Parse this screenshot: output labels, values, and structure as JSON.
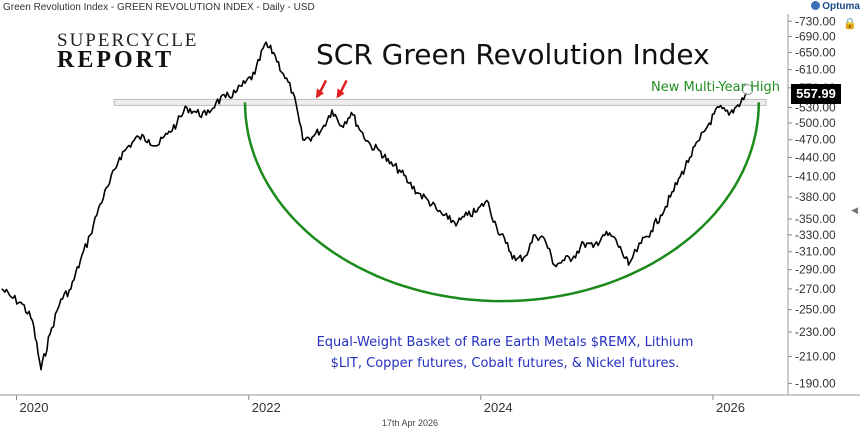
{
  "header": {
    "chart_info": "Green Revolution Index - GREEN REVOLUTION INDEX - Daily - USD",
    "brand": "Optuma",
    "date": "17th Apr 2026",
    "lock_icon": "lock-icon",
    "scroll_icon": "chevron-left-icon"
  },
  "logo": {
    "line1": "SUPERCYCLE",
    "line2": "REPORT"
  },
  "chart_data": {
    "type": "line",
    "title": "SCR Green Revolution Index",
    "series": [
      {
        "x": [
          "2019-11-15",
          "2019-12-15",
          "2020-01-20",
          "2020-02-20",
          "2020-03-18",
          "2020-04-15",
          "2020-05-20",
          "2020-06-20",
          "2020-07-20",
          "2020-08-20",
          "2020-09-20",
          "2020-10-20",
          "2020-11-20",
          "2020-12-20",
          "2021-01-20",
          "2021-02-20",
          "2021-03-20",
          "2021-04-20",
          "2021-05-20",
          "2021-06-20",
          "2021-07-20",
          "2021-08-20",
          "2021-09-20",
          "2021-10-20",
          "2021-11-20",
          "2021-12-20",
          "2022-01-20",
          "2022-02-20",
          "2022-03-20",
          "2022-04-20",
          "2022-05-20",
          "2022-06-20",
          "2022-07-20",
          "2022-08-20",
          "2022-09-20",
          "2022-10-20",
          "2022-11-20",
          "2022-12-20",
          "2023-01-20",
          "2023-02-20",
          "2023-03-20",
          "2023-04-20",
          "2023-05-20",
          "2023-06-20",
          "2023-07-20",
          "2023-08-20",
          "2023-09-20",
          "2023-10-20",
          "2023-11-20",
          "2023-12-20",
          "2024-01-20",
          "2024-02-20",
          "2024-03-20",
          "2024-04-20",
          "2024-05-20",
          "2024-06-20",
          "2024-07-20",
          "2024-08-20",
          "2024-09-20",
          "2024-10-20",
          "2024-11-20",
          "2024-12-20",
          "2025-01-20",
          "2025-02-20",
          "2025-03-20",
          "2025-04-10",
          "2025-05-20",
          "2025-06-20",
          "2025-07-20",
          "2025-08-20",
          "2025-09-20",
          "2025-10-20",
          "2025-11-20",
          "2025-12-20",
          "2026-01-20",
          "2026-02-20",
          "2026-03-20",
          "2026-04-17"
        ],
        "values": [
          270,
          262,
          255,
          240,
          200,
          228,
          260,
          270,
          300,
          330,
          370,
          400,
          440,
          460,
          475,
          470,
          460,
          480,
          500,
          530,
          520,
          515,
          540,
          550,
          560,
          580,
          600,
          670,
          650,
          600,
          560,
          470,
          475,
          490,
          525,
          495,
          520,
          485,
          460,
          450,
          430,
          420,
          400,
          385,
          375,
          360,
          350,
          345,
          355,
          360,
          375,
          340,
          320,
          300,
          305,
          330,
          325,
          295,
          300,
          305,
          320,
          315,
          330,
          328,
          310,
          295,
          320,
          335,
          355,
          380,
          410,
          440,
          470,
          500,
          530,
          515,
          535,
          557.99
        ]
      }
    ],
    "x_ticks": [
      "2020",
      "2022",
      "2024",
      "2026"
    ],
    "x_ticks_dates": [
      "2020-01-01",
      "2022-01-01",
      "2024-01-01",
      "2026-01-01"
    ],
    "y_ticks": [
      190,
      210,
      230,
      250,
      270,
      290,
      310,
      330,
      350,
      380,
      410,
      440,
      470,
      500,
      530,
      570,
      610,
      650,
      690,
      730
    ],
    "y_scale": "log",
    "ylim": [
      182,
      750
    ],
    "xlim": [
      "2019-11-10",
      "2026-08-25"
    ],
    "last_value": "557.99",
    "last_value_label": "557.99",
    "resistance_level": 540,
    "resistance_range": [
      "2021-01-05",
      "2026-04-15"
    ],
    "arrow_dates": [
      "2022-07-25",
      "2022-09-28"
    ],
    "arc": {
      "x_start": "2021-12-20",
      "x_end": "2026-05-25",
      "y_top": 540,
      "y_bottom": 258
    },
    "annotation": "New Multi-Year High",
    "description_line1": "Equal-Weight Basket of Rare Earth Metals $REMX, Lithium",
    "description_line2": "$LIT, Copper futures, Cobalt futures, & Nickel futures.",
    "colors": {
      "line": "#000000",
      "arc": "#1a8a1a",
      "arrow": "#e02020",
      "annotation": "#1f8f1f",
      "description": "#2430c0"
    }
  }
}
